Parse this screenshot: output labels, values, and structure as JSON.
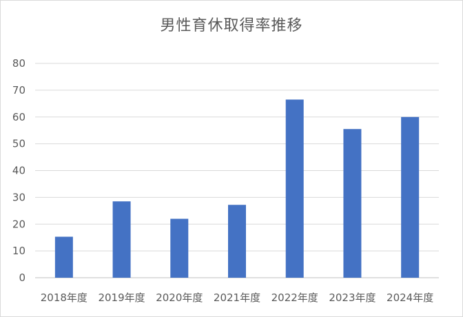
{
  "chart_data": {
    "type": "bar",
    "title": "男性育休取得率推移",
    "categories": [
      "2018年度",
      "2019年度",
      "2020年度",
      "2021年度",
      "2022年度",
      "2023年度",
      "2024年度"
    ],
    "values": [
      15.3,
      28.5,
      22.0,
      27.2,
      66.5,
      55.5,
      60.0
    ],
    "ylim": [
      0,
      80
    ],
    "yticks": [
      0,
      10,
      20,
      30,
      40,
      50,
      60,
      70,
      80
    ],
    "grid": true,
    "bar_color": "#4472c4"
  }
}
